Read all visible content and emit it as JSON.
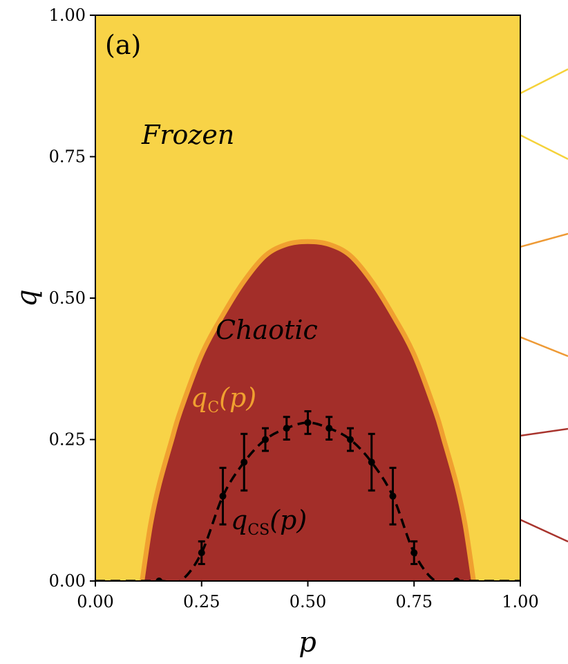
{
  "chart_data": {
    "type": "area",
    "panel_label": "(a)",
    "xlabel": "p",
    "ylabel": "q",
    "xlim": [
      0,
      1
    ],
    "ylim": [
      0,
      1
    ],
    "xticks": [
      "0.00",
      "0.25",
      "0.50",
      "0.75",
      "1.00"
    ],
    "yticks": [
      "0.00",
      "0.25",
      "0.50",
      "0.75",
      "1.00"
    ],
    "grid": false,
    "regions": [
      {
        "name": "Frozen",
        "color": "#F8D347"
      },
      {
        "name": "Chaotic",
        "color": "#A32E29"
      }
    ],
    "colors": {
      "boundary": "#F0A030",
      "cs_curve": "#000000",
      "frozen": "#F8D347",
      "chaotic": "#A32E29",
      "connector_yellow": "#F5D23A",
      "connector_orange": "#EE9A35",
      "connector_red": "#A8342D"
    },
    "series": [
      {
        "label_base": "q",
        "label_sub": "C",
        "label_arg": "(p)",
        "x": [
          0.11,
          0.13,
          0.15,
          0.18,
          0.2,
          0.25,
          0.3,
          0.35,
          0.4,
          0.45,
          0.5,
          0.55,
          0.6,
          0.65,
          0.7,
          0.75,
          0.8,
          0.82,
          0.85,
          0.87,
          0.89
        ],
        "values": [
          0.0,
          0.1,
          0.17,
          0.25,
          0.3,
          0.4,
          0.47,
          0.53,
          0.575,
          0.595,
          0.6,
          0.595,
          0.575,
          0.53,
          0.47,
          0.4,
          0.3,
          0.25,
          0.17,
          0.1,
          0.0
        ]
      },
      {
        "label_base": "q",
        "label_sub": "CS",
        "label_arg": "(p)",
        "x": [
          0.0,
          0.15,
          0.2,
          0.25,
          0.3,
          0.35,
          0.4,
          0.45,
          0.5,
          0.55,
          0.6,
          0.65,
          0.7,
          0.75,
          0.8,
          0.85,
          1.0
        ],
        "values": [
          0.0,
          0.0,
          0.0,
          0.05,
          0.15,
          0.21,
          0.25,
          0.27,
          0.28,
          0.27,
          0.25,
          0.21,
          0.15,
          0.05,
          0.0,
          0.0,
          0.0
        ],
        "markers": {
          "x": [
            0.15,
            0.25,
            0.3,
            0.35,
            0.4,
            0.45,
            0.5,
            0.55,
            0.6,
            0.65,
            0.7,
            0.75,
            0.85
          ],
          "y": [
            0.0,
            0.05,
            0.15,
            0.21,
            0.25,
            0.27,
            0.28,
            0.27,
            0.25,
            0.21,
            0.15,
            0.05,
            0.0
          ],
          "err": [
            0.0,
            0.02,
            0.05,
            0.05,
            0.02,
            0.02,
            0.02,
            0.02,
            0.02,
            0.05,
            0.05,
            0.02,
            0.0
          ]
        }
      }
    ]
  }
}
